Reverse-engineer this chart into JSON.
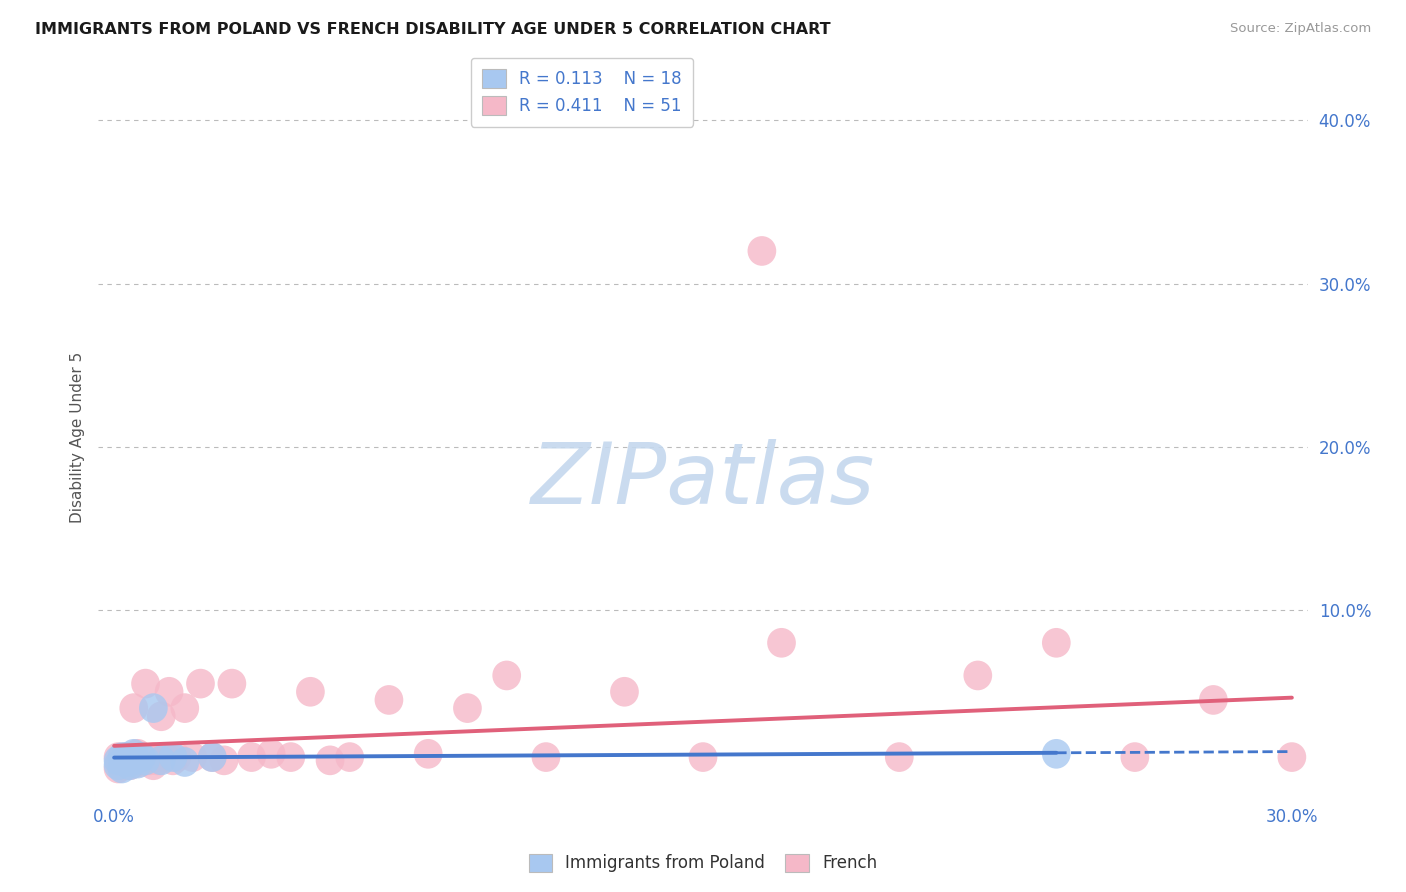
{
  "title": "IMMIGRANTS FROM POLAND VS FRENCH DISABILITY AGE UNDER 5 CORRELATION CHART",
  "source": "Source: ZipAtlas.com",
  "ylabel": "Disability Age Under 5",
  "xlim": [
    0.0,
    0.3
  ],
  "ylim": [
    0.0,
    0.42
  ],
  "ytick_vals": [
    0.1,
    0.2,
    0.3,
    0.4
  ],
  "ytick_labels": [
    "10.0%",
    "20.0%",
    "30.0%",
    "40.0%"
  ],
  "xtick_vals": [
    0.0,
    0.3
  ],
  "xtick_labels": [
    "0.0%",
    "30.0%"
  ],
  "grid_color": "#bbbbbb",
  "background_color": "#ffffff",
  "watermark_text": "ZIPatlas",
  "watermark_color": "#c5d8ee",
  "title_color": "#1a1a1a",
  "source_color": "#999999",
  "tick_color": "#4477cc",
  "ylabel_color": "#555555",
  "legend_text_color": "#4477cc",
  "series": [
    {
      "name": "Immigrants from Poland",
      "R": 0.113,
      "N": 18,
      "marker_color": "#a8c8f0",
      "marker_edge": "none",
      "line_color": "#4477cc",
      "x": [
        0.001,
        0.001,
        0.002,
        0.002,
        0.003,
        0.003,
        0.004,
        0.005,
        0.005,
        0.006,
        0.007,
        0.008,
        0.01,
        0.012,
        0.015,
        0.018,
        0.025,
        0.24
      ],
      "y": [
        0.005,
        0.008,
        0.003,
        0.01,
        0.007,
        0.01,
        0.005,
        0.008,
        0.012,
        0.006,
        0.01,
        0.008,
        0.04,
        0.008,
        0.01,
        0.007,
        0.01,
        0.012
      ]
    },
    {
      "name": "French",
      "R": 0.411,
      "N": 51,
      "marker_color": "#f5b8c8",
      "marker_edge": "none",
      "line_color": "#e0607a",
      "x": [
        0.001,
        0.001,
        0.002,
        0.002,
        0.003,
        0.003,
        0.004,
        0.004,
        0.005,
        0.005,
        0.006,
        0.006,
        0.007,
        0.007,
        0.008,
        0.009,
        0.01,
        0.01,
        0.011,
        0.012,
        0.013,
        0.014,
        0.015,
        0.016,
        0.018,
        0.02,
        0.022,
        0.025,
        0.028,
        0.03,
        0.035,
        0.04,
        0.045,
        0.05,
        0.055,
        0.06,
        0.07,
        0.08,
        0.09,
        0.1,
        0.11,
        0.13,
        0.15,
        0.165,
        0.17,
        0.2,
        0.22,
        0.24,
        0.26,
        0.28,
        0.3
      ],
      "y": [
        0.01,
        0.003,
        0.008,
        0.005,
        0.007,
        0.01,
        0.005,
        0.01,
        0.006,
        0.04,
        0.008,
        0.012,
        0.007,
        0.01,
        0.055,
        0.008,
        0.01,
        0.005,
        0.008,
        0.035,
        0.01,
        0.05,
        0.008,
        0.01,
        0.04,
        0.01,
        0.055,
        0.01,
        0.008,
        0.055,
        0.01,
        0.012,
        0.01,
        0.05,
        0.008,
        0.01,
        0.045,
        0.012,
        0.04,
        0.06,
        0.01,
        0.05,
        0.01,
        0.32,
        0.08,
        0.01,
        0.06,
        0.08,
        0.01,
        0.045,
        0.01
      ]
    }
  ],
  "blue_line_x": [
    0.0,
    0.24,
    0.3
  ],
  "blue_line_solid_end": 0.24,
  "pink_line_x": [
    0.0,
    0.3
  ]
}
